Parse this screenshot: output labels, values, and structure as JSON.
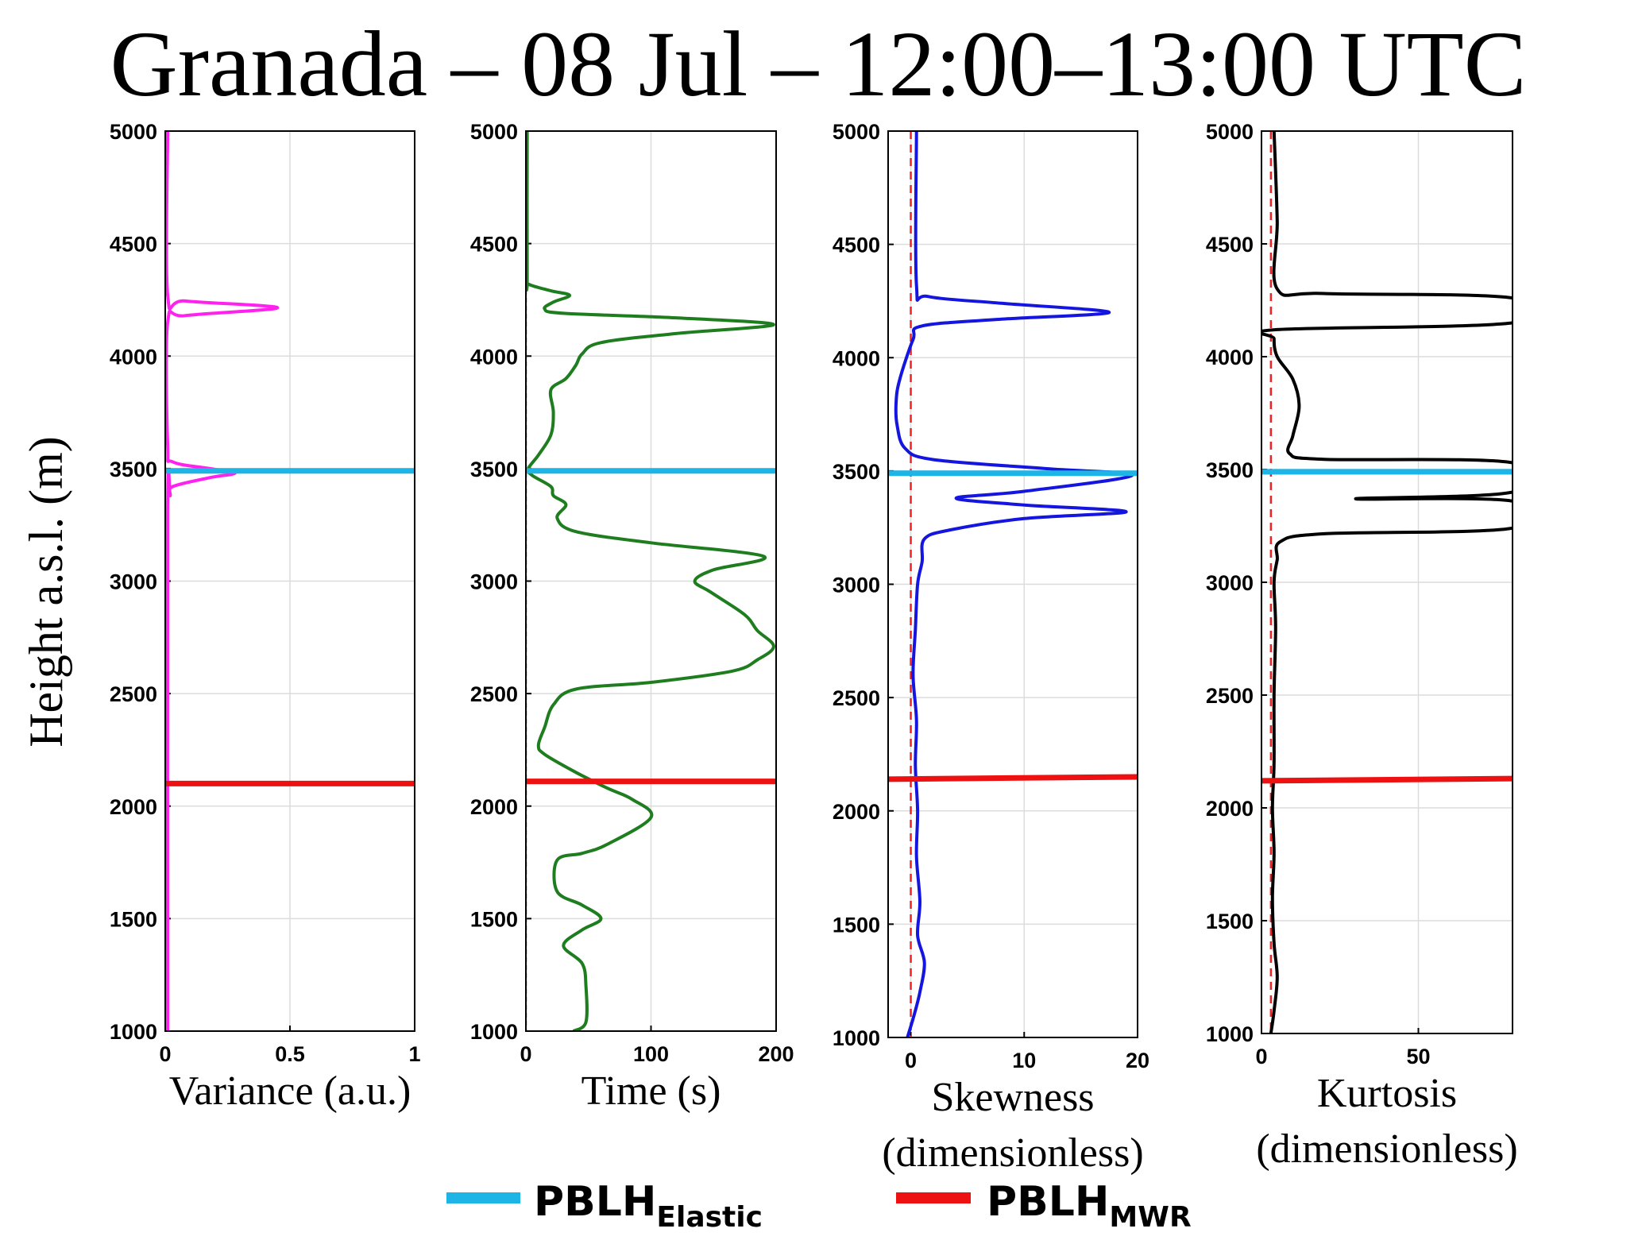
{
  "chart_data": {
    "title": "Granada – 08 Jul – 12:00–13:00 UTC",
    "ylabel": "Height a.s.l. (m)",
    "ylim": [
      1000,
      5000
    ],
    "yticks": [
      "1000",
      "1500",
      "2000",
      "2500",
      "3000",
      "3500",
      "4000",
      "4500",
      "5000"
    ],
    "yticks_values": [
      1000,
      1500,
      2000,
      2500,
      3000,
      3500,
      4000,
      4500,
      5000
    ],
    "grid": true,
    "legend": {
      "placement": "bottom-center",
      "entries": [
        {
          "main": "PBLH",
          "sub": "Elastic",
          "color": "#1fb4e6"
        },
        {
          "main": "PBLH",
          "sub": "MWR",
          "color": "#ee1111"
        }
      ]
    },
    "panels": [
      {
        "type": "line",
        "xlabel": "Variance (a.u.)",
        "xlabel2": "",
        "xlim": [
          0,
          1
        ],
        "xticks": [
          "0",
          "0.5",
          "1"
        ],
        "xticks_values": [
          0,
          0.5,
          1
        ],
        "color": "#ff22ee",
        "series": [
          {
            "x": 0.01,
            "y": 1000
          },
          {
            "x": 0.01,
            "y": 3300
          },
          {
            "x": 0.02,
            "y": 3380
          },
          {
            "x": 0.03,
            "y": 3420
          },
          {
            "x": 0.18,
            "y": 3460
          },
          {
            "x": 0.28,
            "y": 3480
          },
          {
            "x": 0.18,
            "y": 3500
          },
          {
            "x": 0.03,
            "y": 3530
          },
          {
            "x": 0.01,
            "y": 3600
          },
          {
            "x": 0.01,
            "y": 4150
          },
          {
            "x": 0.08,
            "y": 4180
          },
          {
            "x": 0.45,
            "y": 4215
          },
          {
            "x": 0.08,
            "y": 4245
          },
          {
            "x": 0.01,
            "y": 4270
          },
          {
            "x": 0.01,
            "y": 5000
          }
        ],
        "reference": null,
        "pblh_elastic": {
          "y_left": 3490,
          "y_right": 3490
        },
        "pblh_mwr": {
          "y_left": 2100,
          "y_right": 2100
        }
      },
      {
        "type": "line",
        "xlabel": "Time (s)",
        "xlabel2": "",
        "xlim": [
          0,
          200
        ],
        "xticks": [
          "0",
          "100",
          "200"
        ],
        "xticks_values": [
          0,
          100,
          200
        ],
        "color": "#1e7d1e",
        "series": [
          {
            "x": 38,
            "y": 1000
          },
          {
            "x": 48,
            "y": 1040
          },
          {
            "x": 48,
            "y": 1200
          },
          {
            "x": 45,
            "y": 1300
          },
          {
            "x": 30,
            "y": 1380
          },
          {
            "x": 45,
            "y": 1450
          },
          {
            "x": 60,
            "y": 1500
          },
          {
            "x": 45,
            "y": 1560
          },
          {
            "x": 25,
            "y": 1620
          },
          {
            "x": 25,
            "y": 1760
          },
          {
            "x": 45,
            "y": 1790
          },
          {
            "x": 65,
            "y": 1830
          },
          {
            "x": 100,
            "y": 1950
          },
          {
            "x": 85,
            "y": 2030
          },
          {
            "x": 65,
            "y": 2080
          },
          {
            "x": 40,
            "y": 2150
          },
          {
            "x": 15,
            "y": 2230
          },
          {
            "x": 10,
            "y": 2270
          },
          {
            "x": 15,
            "y": 2350
          },
          {
            "x": 22,
            "y": 2450
          },
          {
            "x": 40,
            "y": 2520
          },
          {
            "x": 100,
            "y": 2550
          },
          {
            "x": 165,
            "y": 2600
          },
          {
            "x": 185,
            "y": 2650
          },
          {
            "x": 198,
            "y": 2710
          },
          {
            "x": 185,
            "y": 2780
          },
          {
            "x": 175,
            "y": 2850
          },
          {
            "x": 148,
            "y": 2950
          },
          {
            "x": 135,
            "y": 3000
          },
          {
            "x": 150,
            "y": 3050
          },
          {
            "x": 190,
            "y": 3110
          },
          {
            "x": 100,
            "y": 3170
          },
          {
            "x": 40,
            "y": 3220
          },
          {
            "x": 25,
            "y": 3280
          },
          {
            "x": 32,
            "y": 3340
          },
          {
            "x": 22,
            "y": 3380
          },
          {
            "x": 20,
            "y": 3420
          },
          {
            "x": 5,
            "y": 3470
          },
          {
            "x": 2,
            "y": 3500
          },
          {
            "x": 10,
            "y": 3560
          },
          {
            "x": 20,
            "y": 3650
          },
          {
            "x": 22,
            "y": 3750
          },
          {
            "x": 20,
            "y": 3850
          },
          {
            "x": 32,
            "y": 3900
          },
          {
            "x": 40,
            "y": 3960
          },
          {
            "x": 45,
            "y": 4010
          },
          {
            "x": 60,
            "y": 4060
          },
          {
            "x": 120,
            "y": 4100
          },
          {
            "x": 198,
            "y": 4140
          },
          {
            "x": 120,
            "y": 4170
          },
          {
            "x": 30,
            "y": 4190
          },
          {
            "x": 15,
            "y": 4210
          },
          {
            "x": 22,
            "y": 4240
          },
          {
            "x": 35,
            "y": 4270
          },
          {
            "x": 20,
            "y": 4290
          },
          {
            "x": 2,
            "y": 4320
          },
          {
            "x": 1,
            "y": 4350
          },
          {
            "x": 1,
            "y": 5000
          }
        ],
        "reference": {
          "x": 0,
          "color": "#666666",
          "dash": "6,4"
        },
        "pblh_elastic": {
          "y_left": 3490,
          "y_right": 3490
        },
        "pblh_mwr": {
          "y_left": 2110,
          "y_right": 2110
        }
      },
      {
        "type": "line",
        "xlabel": "Skewness",
        "xlabel2": "(dimensionless)",
        "xlim": [
          -2,
          20
        ],
        "xticks": [
          "0",
          "10",
          "20"
        ],
        "xticks_values": [
          0,
          10,
          20
        ],
        "color": "#1515e0",
        "series": [
          {
            "x": -0.3,
            "y": 1000
          },
          {
            "x": 0.3,
            "y": 1100
          },
          {
            "x": 0.8,
            "y": 1200
          },
          {
            "x": 1.2,
            "y": 1330
          },
          {
            "x": 0.6,
            "y": 1450
          },
          {
            "x": 0.8,
            "y": 1600
          },
          {
            "x": 0.5,
            "y": 1800
          },
          {
            "x": 0.6,
            "y": 2000
          },
          {
            "x": 0.4,
            "y": 2200
          },
          {
            "x": 0.5,
            "y": 2400
          },
          {
            "x": 0.2,
            "y": 2600
          },
          {
            "x": 0.4,
            "y": 2800
          },
          {
            "x": 0.6,
            "y": 3000
          },
          {
            "x": 1.0,
            "y": 3100
          },
          {
            "x": 1.2,
            "y": 3200
          },
          {
            "x": 3.5,
            "y": 3240
          },
          {
            "x": 10,
            "y": 3290
          },
          {
            "x": 19,
            "y": 3320
          },
          {
            "x": 10,
            "y": 3350
          },
          {
            "x": 4,
            "y": 3380
          },
          {
            "x": 10,
            "y": 3410
          },
          {
            "x": 19.5,
            "y": 3480
          },
          {
            "x": 12,
            "y": 3510
          },
          {
            "x": 2,
            "y": 3550
          },
          {
            "x": -0.5,
            "y": 3600
          },
          {
            "x": -1.2,
            "y": 3700
          },
          {
            "x": -1.3,
            "y": 3800
          },
          {
            "x": -1.0,
            "y": 3900
          },
          {
            "x": 0.2,
            "y": 4080
          },
          {
            "x": 1.0,
            "y": 4140
          },
          {
            "x": 8,
            "y": 4170
          },
          {
            "x": 17.5,
            "y": 4200
          },
          {
            "x": 8,
            "y": 4240
          },
          {
            "x": 1.5,
            "y": 4270
          },
          {
            "x": 0.5,
            "y": 4320
          },
          {
            "x": 0.5,
            "y": 5000
          }
        ],
        "reference": {
          "x": 0,
          "color": "#ee2222",
          "dash": "10,7"
        },
        "pblh_elastic": {
          "y_left": 3490,
          "y_right": 3490
        },
        "pblh_mwr": {
          "y_left": 2140,
          "y_right": 2150
        }
      },
      {
        "type": "line",
        "xlabel": "Kurtosis",
        "xlabel2": "(dimensionless)",
        "xlim": [
          0,
          80
        ],
        "xticks": [
          "0",
          "50"
        ],
        "xticks_values": [
          0,
          50
        ],
        "color": "#000000",
        "series": [
          {
            "x": 3,
            "y": 1000
          },
          {
            "x": 4,
            "y": 1100
          },
          {
            "x": 5,
            "y": 1250
          },
          {
            "x": 4,
            "y": 1400
          },
          {
            "x": 3.5,
            "y": 1600
          },
          {
            "x": 4,
            "y": 1800
          },
          {
            "x": 3.5,
            "y": 2000
          },
          {
            "x": 4,
            "y": 2200
          },
          {
            "x": 4,
            "y": 2500
          },
          {
            "x": 4.5,
            "y": 2800
          },
          {
            "x": 4,
            "y": 3000
          },
          {
            "x": 5,
            "y": 3100
          },
          {
            "x": 6,
            "y": 3180
          },
          {
            "x": 20,
            "y": 3215
          },
          {
            "x": 80,
            "y": 3240
          },
          {
            "x": 80,
            "y": 3360
          },
          {
            "x": 30,
            "y": 3370
          },
          {
            "x": 80,
            "y": 3400
          },
          {
            "x": 80,
            "y": 3530
          },
          {
            "x": 20,
            "y": 3545
          },
          {
            "x": 9,
            "y": 3570
          },
          {
            "x": 10,
            "y": 3650
          },
          {
            "x": 12,
            "y": 3780
          },
          {
            "x": 10,
            "y": 3900
          },
          {
            "x": 5,
            "y": 4000
          },
          {
            "x": 4,
            "y": 4080
          },
          {
            "x": 5,
            "y": 4120
          },
          {
            "x": 80,
            "y": 4150
          },
          {
            "x": 80,
            "y": 4260
          },
          {
            "x": 20,
            "y": 4280
          },
          {
            "x": 5,
            "y": 4300
          },
          {
            "x": 5,
            "y": 4600
          },
          {
            "x": 4,
            "y": 5000
          }
        ],
        "reference": {
          "x": 3,
          "color": "#ee2222",
          "dash": "10,7"
        },
        "pblh_elastic": {
          "y_left": 3490,
          "y_right": 3490
        },
        "pblh_mwr": {
          "y_left": 2120,
          "y_right": 2130
        }
      }
    ]
  }
}
